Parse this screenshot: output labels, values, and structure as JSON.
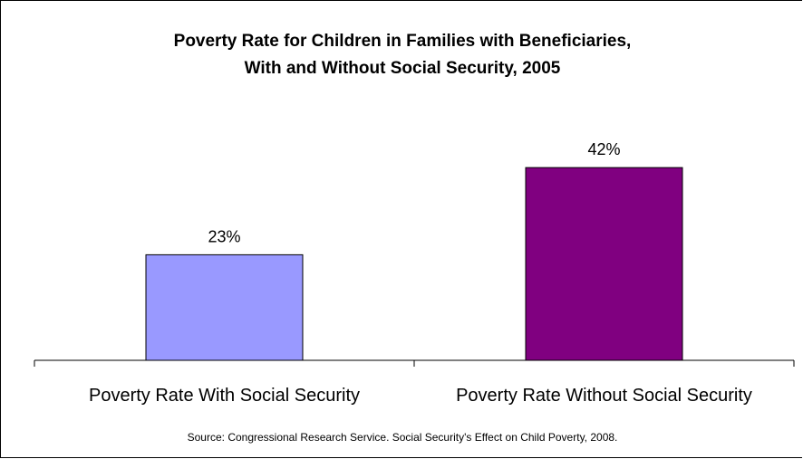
{
  "chart_data": {
    "type": "bar",
    "title": "Poverty Rate for Children in Families with Beneficiaries,",
    "subtitle": "With and Without Social Security, 2005",
    "categories": [
      "Poverty Rate With Social Security",
      "Poverty Rate Without Social Security"
    ],
    "values": [
      23,
      42
    ],
    "data_labels": [
      "23%",
      "42%"
    ],
    "colors": [
      "#9999ff",
      "#800080"
    ],
    "bar_stroke": "#000000",
    "ylim": [
      0,
      50
    ],
    "grid": false,
    "legend": "none",
    "xlabel": "",
    "ylabel": ""
  },
  "source": "Source: Congressional Research Service. Social Security's Effect on Child Poverty, 2008."
}
